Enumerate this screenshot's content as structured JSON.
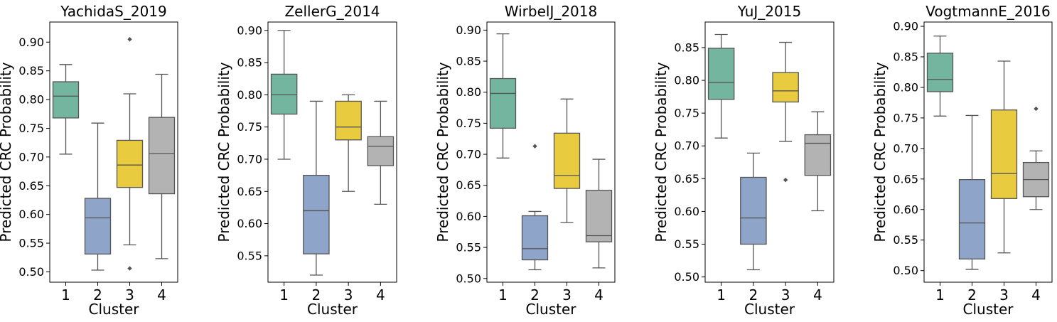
{
  "chart_data": [
    {
      "type": "box",
      "title": "YachidaS_2019",
      "xlabel": "Cluster",
      "ylabel": "Predicted CRC Probability",
      "categories": [
        "1",
        "2",
        "3",
        "4"
      ],
      "ylim": [
        0.482,
        0.935
      ],
      "yticks": [
        0.5,
        0.55,
        0.6,
        0.65,
        0.7,
        0.75,
        0.8,
        0.85,
        0.9
      ],
      "ytick_labels": [
        "0.50",
        "0.55",
        "0.60",
        "0.65",
        "0.70",
        "0.75",
        "0.80",
        "0.85",
        "0.90"
      ],
      "boxes": [
        {
          "category": "1",
          "min": 0.705,
          "q1": 0.768,
          "median": 0.806,
          "q3": 0.831,
          "max": 0.861,
          "fliers": []
        },
        {
          "category": "2",
          "min": 0.503,
          "q1": 0.531,
          "median": 0.594,
          "q3": 0.628,
          "max": 0.759,
          "fliers": []
        },
        {
          "category": "3",
          "min": 0.547,
          "q1": 0.647,
          "median": 0.686,
          "q3": 0.729,
          "max": 0.81,
          "fliers": [
            0.905,
            0.506
          ]
        },
        {
          "category": "4",
          "min": 0.523,
          "q1": 0.636,
          "median": 0.706,
          "q3": 0.769,
          "max": 0.844,
          "fliers": []
        }
      ]
    },
    {
      "type": "box",
      "title": "ZellerG_2014",
      "xlabel": "Cluster",
      "ylabel": "Predicted CRC Probability",
      "categories": [
        "1",
        "2",
        "3",
        "4"
      ],
      "ylim": [
        0.509,
        0.913
      ],
      "yticks": [
        0.55,
        0.6,
        0.65,
        0.7,
        0.75,
        0.8,
        0.85,
        0.9
      ],
      "ytick_labels": [
        "0.55",
        "0.60",
        "0.65",
        "0.70",
        "0.75",
        "0.80",
        "0.85",
        "0.90"
      ],
      "boxes": [
        {
          "category": "1",
          "min": 0.7,
          "q1": 0.77,
          "median": 0.8,
          "q3": 0.832,
          "max": 0.9,
          "fliers": []
        },
        {
          "category": "2",
          "min": 0.52,
          "q1": 0.553,
          "median": 0.62,
          "q3": 0.675,
          "max": 0.79,
          "fliers": []
        },
        {
          "category": "3",
          "min": 0.65,
          "q1": 0.73,
          "median": 0.75,
          "q3": 0.79,
          "max": 0.8,
          "fliers": []
        },
        {
          "category": "4",
          "min": 0.63,
          "q1": 0.69,
          "median": 0.72,
          "q3": 0.735,
          "max": 0.79,
          "fliers": []
        }
      ]
    },
    {
      "type": "box",
      "title": "WirbelJ_2018",
      "xlabel": "Cluster",
      "ylabel": "Predicted CRC Probability",
      "categories": [
        "1",
        "2",
        "3",
        "4"
      ],
      "ylim": [
        0.494,
        0.913
      ],
      "yticks": [
        0.5,
        0.55,
        0.6,
        0.65,
        0.7,
        0.75,
        0.8,
        0.85,
        0.9
      ],
      "ytick_labels": [
        "0.50",
        "0.55",
        "0.60",
        "0.65",
        "0.70",
        "0.75",
        "0.80",
        "0.85",
        "0.90"
      ],
      "boxes": [
        {
          "category": "1",
          "min": 0.694,
          "q1": 0.742,
          "median": 0.798,
          "q3": 0.822,
          "max": 0.894,
          "fliers": []
        },
        {
          "category": "2",
          "min": 0.514,
          "q1": 0.53,
          "median": 0.548,
          "q3": 0.601,
          "max": 0.608,
          "fliers": [
            0.713
          ]
        },
        {
          "category": "3",
          "min": 0.59,
          "q1": 0.645,
          "median": 0.666,
          "q3": 0.734,
          "max": 0.789,
          "fliers": []
        },
        {
          "category": "4",
          "min": 0.517,
          "q1": 0.559,
          "median": 0.569,
          "q3": 0.642,
          "max": 0.692,
          "fliers": []
        }
      ]
    },
    {
      "type": "box",
      "title": "YuJ_2015",
      "xlabel": "Cluster",
      "ylabel": "Predicted CRC Probability",
      "categories": [
        "1",
        "2",
        "3",
        "4"
      ],
      "ylim": [
        0.492,
        0.889
      ],
      "yticks": [
        0.5,
        0.55,
        0.6,
        0.65,
        0.7,
        0.75,
        0.8,
        0.85
      ],
      "ytick_labels": [
        "0.50",
        "0.55",
        "0.60",
        "0.65",
        "0.70",
        "0.75",
        "0.80",
        "0.85"
      ],
      "boxes": [
        {
          "category": "1",
          "min": 0.712,
          "q1": 0.771,
          "median": 0.797,
          "q3": 0.849,
          "max": 0.87,
          "fliers": []
        },
        {
          "category": "2",
          "min": 0.511,
          "q1": 0.55,
          "median": 0.59,
          "q3": 0.652,
          "max": 0.689,
          "fliers": []
        },
        {
          "category": "3",
          "min": 0.707,
          "q1": 0.767,
          "median": 0.784,
          "q3": 0.812,
          "max": 0.858,
          "fliers": [
            0.648
          ]
        },
        {
          "category": "4",
          "min": 0.601,
          "q1": 0.655,
          "median": 0.704,
          "q3": 0.717,
          "max": 0.752,
          "fliers": []
        }
      ]
    },
    {
      "type": "box",
      "title": "VogtmannE_2016",
      "xlabel": "Cluster",
      "ylabel": "Predicted CRC Probability",
      "categories": [
        "1",
        "2",
        "3",
        "4"
      ],
      "ylim": [
        0.481,
        0.907
      ],
      "yticks": [
        0.5,
        0.55,
        0.6,
        0.65,
        0.7,
        0.75,
        0.8,
        0.85,
        0.9
      ],
      "ytick_labels": [
        "0.50",
        "0.55",
        "0.60",
        "0.65",
        "0.70",
        "0.75",
        "0.80",
        "0.85",
        "0.90"
      ],
      "boxes": [
        {
          "category": "1",
          "min": 0.753,
          "q1": 0.793,
          "median": 0.813,
          "q3": 0.856,
          "max": 0.884,
          "fliers": []
        },
        {
          "category": "2",
          "min": 0.502,
          "q1": 0.519,
          "median": 0.578,
          "q3": 0.649,
          "max": 0.754,
          "fliers": []
        },
        {
          "category": "3",
          "min": 0.529,
          "q1": 0.618,
          "median": 0.659,
          "q3": 0.763,
          "max": 0.843,
          "fliers": []
        },
        {
          "category": "4",
          "min": 0.6,
          "q1": 0.621,
          "median": 0.649,
          "q3": 0.677,
          "max": 0.696,
          "fliers": [
            0.765
          ]
        }
      ]
    }
  ],
  "colors": {
    "cluster_1": "#73b59e",
    "cluster_2": "#8fa4c9",
    "cluster_3": "#e8cb3f",
    "cluster_4": "#b3b3b3",
    "lines": "#555555"
  }
}
